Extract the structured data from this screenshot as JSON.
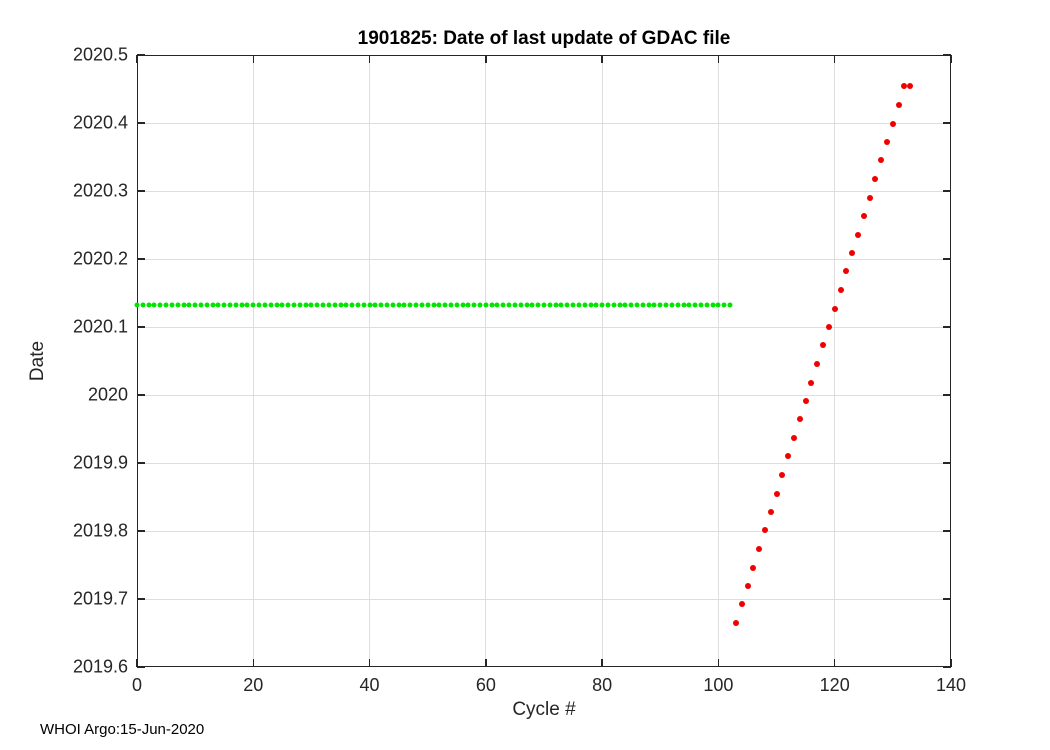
{
  "footer": {
    "credit": "WHOI Argo:15-Jun-2020"
  },
  "chart_data": {
    "type": "scatter",
    "title": "1901825: Date of last update of GDAC file",
    "xlabel": "Cycle #",
    "ylabel": "Date",
    "xlim": [
      0,
      140
    ],
    "ylim": [
      2019.6,
      2020.5
    ],
    "xticks": [
      0,
      20,
      40,
      60,
      80,
      100,
      120,
      140
    ],
    "xtick_labels": [
      "0",
      "20",
      "40",
      "60",
      "80",
      "100",
      "120",
      "140"
    ],
    "yticks": [
      2019.6,
      2019.7,
      2019.8,
      2019.9,
      2020,
      2020.1,
      2020.2,
      2020.3,
      2020.4,
      2020.5
    ],
    "ytick_labels": [
      "2019.6",
      "2019.7",
      "2019.8",
      "2019.9",
      "2020",
      "2020.1",
      "2020.2",
      "2020.3",
      "2020.4",
      "2020.5"
    ],
    "grid": true,
    "legend": "none",
    "box": true,
    "tick_dir": "in",
    "series": [
      {
        "name": "gdac-update-date-constant-green",
        "description": "Cycles whose GDAC file was last updated on the same earlier date",
        "color": "#00e400",
        "marker": "dot",
        "marker_px": 5,
        "x_start": 0,
        "x_end": 102,
        "x_step": 1,
        "y_constant": 2020.133
      },
      {
        "name": "gdac-update-date-recent-red",
        "description": "Cycles whose GDAC file update date increases with cycle number",
        "color": "#f10000",
        "marker": "dot",
        "marker_px": 6,
        "x": [
          103,
          104,
          105,
          106,
          107,
          108,
          109,
          110,
          111,
          112,
          113,
          114,
          115,
          116,
          117,
          118,
          119,
          120,
          121,
          122,
          123,
          124,
          125,
          126,
          127,
          128,
          129,
          130,
          131,
          132,
          133
        ],
        "y": [
          2019.665,
          2019.692,
          2019.719,
          2019.746,
          2019.774,
          2019.801,
          2019.828,
          2019.855,
          2019.882,
          2019.91,
          2019.937,
          2019.964,
          2019.991,
          2020.018,
          2020.046,
          2020.073,
          2020.1,
          2020.127,
          2020.154,
          2020.182,
          2020.209,
          2020.236,
          2020.263,
          2020.29,
          2020.318,
          2020.345,
          2020.372,
          2020.399,
          2020.427,
          2020.454,
          2020.455
        ]
      }
    ]
  },
  "colors": {
    "axes": "#262626",
    "grid": "#dedede",
    "title": "#000000",
    "background": "#ffffff",
    "green_series": "#00e400",
    "red_series": "#f10000"
  }
}
